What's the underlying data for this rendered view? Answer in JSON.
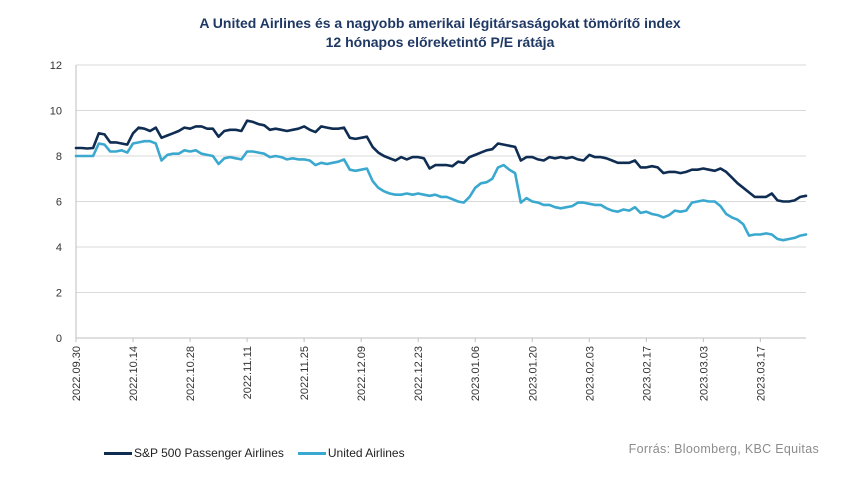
{
  "title_line1": "A United Airlines és a nagyobb amerikai légitársaságokat tömörítő index",
  "title_line2": "12 hónapos előreketintő P/E rátája",
  "source": "Forrás: Bloomberg,  KBC Equitas",
  "colors": {
    "sp500": "#0f2d52",
    "united": "#3aa8cf",
    "grid": "#d9d9d9",
    "axis_text": "#333333"
  },
  "chart_data": {
    "type": "line",
    "ylim": [
      0,
      12
    ],
    "yticks": [
      0,
      2,
      4,
      6,
      8,
      10,
      12
    ],
    "x_tick_labels": [
      "2022.09.30",
      "2022.10.14",
      "2022.10.28",
      "2022.11.11",
      "2022.11.25",
      "2022.12.09",
      "2022.12.23",
      "2023.01.06",
      "2023.01.20",
      "2023.02.03",
      "2023.02.17",
      "2023.03.03",
      "2023.03.17"
    ],
    "x_tick_index": [
      0,
      10,
      20,
      30,
      40,
      50,
      60,
      70,
      80,
      90,
      100,
      110,
      120
    ],
    "series": [
      {
        "name": "S&P 500 Passenger Airlines",
        "values": [
          8.35,
          8.35,
          8.33,
          8.35,
          9.0,
          8.95,
          8.6,
          8.6,
          8.55,
          8.5,
          9.0,
          9.25,
          9.2,
          9.1,
          9.25,
          8.8,
          8.9,
          9.0,
          9.1,
          9.25,
          9.2,
          9.3,
          9.3,
          9.2,
          9.2,
          8.85,
          9.1,
          9.15,
          9.15,
          9.1,
          9.55,
          9.5,
          9.4,
          9.35,
          9.15,
          9.2,
          9.15,
          9.1,
          9.15,
          9.2,
          9.3,
          9.15,
          9.05,
          9.3,
          9.25,
          9.2,
          9.2,
          9.25,
          8.8,
          8.75,
          8.8,
          8.85,
          8.4,
          8.15,
          8.0,
          7.9,
          7.8,
          7.95,
          7.85,
          7.95,
          7.95,
          7.9,
          7.45,
          7.6,
          7.6,
          7.6,
          7.55,
          7.75,
          7.7,
          7.95,
          8.05,
          8.15,
          8.25,
          8.3,
          8.55,
          8.5,
          8.45,
          8.4,
          7.8,
          7.95,
          7.95,
          7.85,
          7.8,
          7.95,
          7.9,
          7.95,
          7.9,
          7.95,
          7.85,
          7.8,
          8.05,
          7.95,
          7.95,
          7.9,
          7.8,
          7.7,
          7.7,
          7.7,
          7.8,
          7.5,
          7.5,
          7.55,
          7.5,
          7.25,
          7.3,
          7.3,
          7.25,
          7.3,
          7.4,
          7.4,
          7.45,
          7.4,
          7.35,
          7.45,
          7.3,
          7.05,
          6.8,
          6.6,
          6.4,
          6.2,
          6.2,
          6.2,
          6.35,
          6.05,
          6.0,
          6.0,
          6.05,
          6.2,
          6.25
        ]
      },
      {
        "name": "United Airlines",
        "values": [
          8.0,
          8.0,
          8.0,
          8.0,
          8.55,
          8.5,
          8.2,
          8.2,
          8.25,
          8.15,
          8.55,
          8.6,
          8.65,
          8.65,
          8.55,
          7.8,
          8.05,
          8.1,
          8.1,
          8.25,
          8.2,
          8.25,
          8.1,
          8.05,
          8.0,
          7.65,
          7.9,
          7.95,
          7.9,
          7.85,
          8.2,
          8.2,
          8.15,
          8.1,
          7.95,
          8.0,
          7.95,
          7.85,
          7.9,
          7.85,
          7.85,
          7.8,
          7.6,
          7.7,
          7.65,
          7.7,
          7.75,
          7.85,
          7.4,
          7.35,
          7.4,
          7.45,
          6.9,
          6.6,
          6.45,
          6.35,
          6.3,
          6.3,
          6.35,
          6.3,
          6.35,
          6.3,
          6.25,
          6.3,
          6.2,
          6.2,
          6.1,
          6.0,
          5.95,
          6.2,
          6.6,
          6.8,
          6.85,
          7.0,
          7.5,
          7.6,
          7.4,
          7.25,
          5.95,
          6.15,
          6.0,
          5.95,
          5.85,
          5.85,
          5.75,
          5.7,
          5.75,
          5.8,
          5.95,
          5.95,
          5.9,
          5.85,
          5.85,
          5.7,
          5.6,
          5.55,
          5.65,
          5.6,
          5.75,
          5.5,
          5.55,
          5.45,
          5.4,
          5.3,
          5.4,
          5.6,
          5.55,
          5.6,
          5.95,
          6.0,
          6.05,
          6.0,
          6.0,
          5.8,
          5.45,
          5.3,
          5.2,
          5.0,
          4.5,
          4.55,
          4.55,
          4.6,
          4.55,
          4.35,
          4.3,
          4.35,
          4.4,
          4.5,
          4.55
        ]
      }
    ]
  }
}
